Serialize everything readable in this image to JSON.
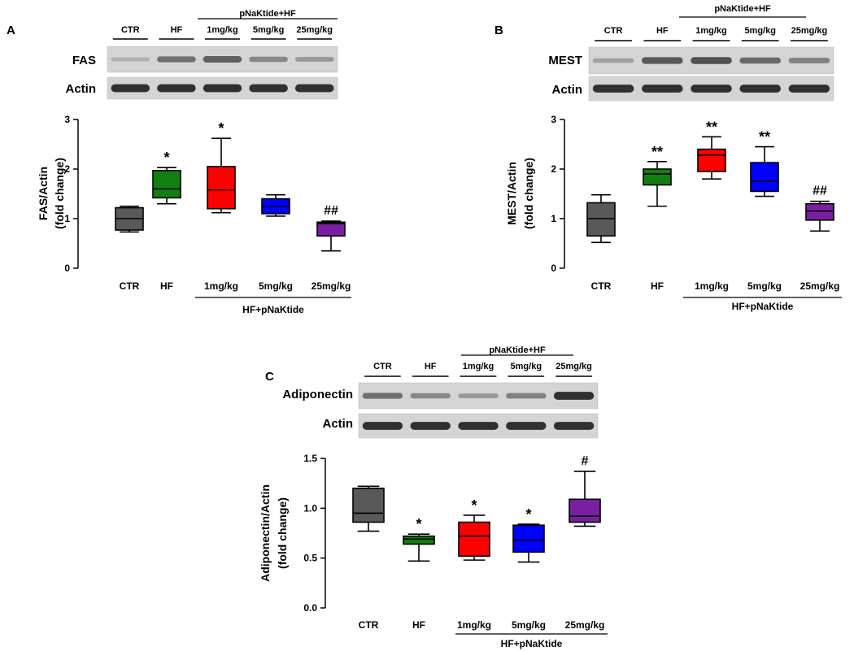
{
  "chart_data": [
    {
      "type": "box",
      "panel_label": "A",
      "blot": {
        "group_header": "pNaKtide+HF",
        "lane_labels": [
          "CTR",
          "HF",
          "1mg/kg",
          "5mg/kg",
          "25mg/kg"
        ],
        "rows": [
          {
            "label": "FAS",
            "intensity": [
              0.15,
              0.55,
              0.65,
              0.4,
              0.3
            ]
          },
          {
            "label": "Actin",
            "intensity": [
              0.95,
              0.95,
              0.95,
              0.95,
              0.95
            ]
          }
        ]
      },
      "categories": [
        "CTR",
        "HF",
        "1mg/kg",
        "5mg/kg",
        "25mg/kg"
      ],
      "group_label": "HF+pNaKtide",
      "ylabel_line1": "FAS/Actin",
      "ylabel_line2": "(fold change)",
      "ylim": [
        0,
        3
      ],
      "yticks": [
        0,
        1,
        2,
        3
      ],
      "yticklabels": [
        "0",
        "1",
        "2",
        "3"
      ],
      "boxes": [
        {
          "min": 0.73,
          "q1": 0.77,
          "median": 1.0,
          "q3": 1.22,
          "max": 1.25,
          "color": "#595959",
          "annotation": ""
        },
        {
          "min": 1.3,
          "q1": 1.42,
          "median": 1.6,
          "q3": 1.97,
          "max": 2.03,
          "color": "#108010",
          "annotation": "*"
        },
        {
          "min": 1.12,
          "q1": 1.2,
          "median": 1.58,
          "q3": 2.05,
          "max": 2.62,
          "color": "#ff0000",
          "annotation": "*"
        },
        {
          "min": 1.05,
          "q1": 1.1,
          "median": 1.25,
          "q3": 1.4,
          "max": 1.48,
          "color": "#0000ff",
          "annotation": ""
        },
        {
          "min": 0.35,
          "q1": 0.65,
          "median": 0.9,
          "q3": 0.93,
          "max": 0.95,
          "color": "#7b1fa2",
          "annotation": "##"
        }
      ]
    },
    {
      "type": "box",
      "panel_label": "B",
      "blot": {
        "group_header": "pNaKtide+HF",
        "lane_labels": [
          "CTR",
          "HF",
          "1mg/kg",
          "5mg/kg",
          "25mg/kg"
        ],
        "rows": [
          {
            "label": "MEST",
            "intensity": [
              0.25,
              0.7,
              0.75,
              0.6,
              0.45
            ]
          },
          {
            "label": "Actin",
            "intensity": [
              0.95,
              0.95,
              0.95,
              0.95,
              0.95
            ]
          }
        ]
      },
      "categories": [
        "CTR",
        "HF",
        "1mg/kg",
        "5mg/kg",
        "25mg/kg"
      ],
      "group_label": "HF+pNaKtide",
      "ylabel_line1": "MEST/Actin",
      "ylabel_line2": "(fold change)",
      "ylim": [
        0,
        3
      ],
      "yticks": [
        0,
        1,
        2,
        3
      ],
      "yticklabels": [
        "0",
        "1",
        "2",
        "3"
      ],
      "boxes": [
        {
          "min": 0.52,
          "q1": 0.65,
          "median": 1.0,
          "q3": 1.32,
          "max": 1.48,
          "color": "#595959",
          "annotation": ""
        },
        {
          "min": 1.25,
          "q1": 1.68,
          "median": 1.9,
          "q3": 2.0,
          "max": 2.15,
          "color": "#108010",
          "annotation": "**"
        },
        {
          "min": 1.8,
          "q1": 1.95,
          "median": 2.28,
          "q3": 2.4,
          "max": 2.65,
          "color": "#ff0000",
          "annotation": "**"
        },
        {
          "min": 1.45,
          "q1": 1.55,
          "median": 1.75,
          "q3": 2.13,
          "max": 2.45,
          "color": "#0000ff",
          "annotation": "**"
        },
        {
          "min": 0.75,
          "q1": 0.97,
          "median": 1.15,
          "q3": 1.3,
          "max": 1.35,
          "color": "#7b1fa2",
          "annotation": "##"
        }
      ]
    },
    {
      "type": "box",
      "panel_label": "C",
      "blot": {
        "group_header": "pNaKtide+HF",
        "lane_labels": [
          "CTR",
          "HF",
          "1mg/kg",
          "5mg/kg",
          "25mg/kg"
        ],
        "rows": [
          {
            "label": "Adiponectin",
            "intensity": [
              0.55,
              0.4,
              0.3,
              0.45,
              0.95
            ]
          },
          {
            "label": "Actin",
            "intensity": [
              0.95,
              0.95,
              0.95,
              0.95,
              0.95
            ]
          }
        ]
      },
      "categories": [
        "CTR",
        "HF",
        "1mg/kg",
        "5mg/kg",
        "25mg/kg"
      ],
      "group_label": "HF+pNaKtide",
      "ylabel_line1": "Adiponectin/Actin",
      "ylabel_line2": "(fold change)",
      "ylim": [
        0,
        1.5
      ],
      "yticks": [
        0,
        0.5,
        1.0,
        1.5
      ],
      "yticklabels": [
        "0.0",
        "0.5",
        "1.0",
        "1.5"
      ],
      "boxes": [
        {
          "min": 0.77,
          "q1": 0.86,
          "median": 0.95,
          "q3": 1.2,
          "max": 1.22,
          "color": "#595959",
          "annotation": ""
        },
        {
          "min": 0.47,
          "q1": 0.64,
          "median": 0.69,
          "q3": 0.72,
          "max": 0.74,
          "color": "#108010",
          "annotation": "*"
        },
        {
          "min": 0.48,
          "q1": 0.52,
          "median": 0.72,
          "q3": 0.86,
          "max": 0.93,
          "color": "#ff0000",
          "annotation": "*"
        },
        {
          "min": 0.46,
          "q1": 0.56,
          "median": 0.68,
          "q3": 0.83,
          "max": 0.84,
          "color": "#0000ff",
          "annotation": "*"
        },
        {
          "min": 0.82,
          "q1": 0.86,
          "median": 0.92,
          "q3": 1.09,
          "max": 1.37,
          "color": "#7b1fa2",
          "annotation": "#"
        }
      ]
    }
  ]
}
